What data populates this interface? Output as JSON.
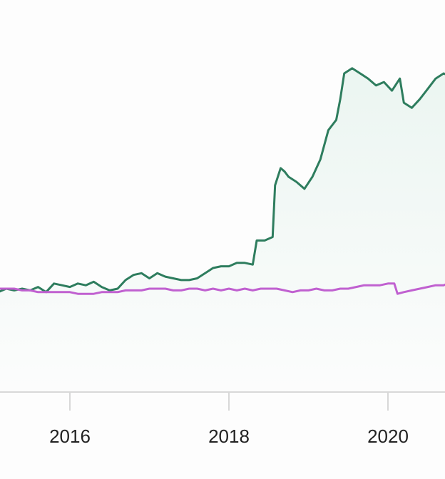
{
  "chart_data": {
    "type": "line",
    "title": "",
    "xlabel": "",
    "ylabel": "",
    "xlim": [
      2015.1,
      2020.75
    ],
    "ylim": [
      -0.6,
      1.7
    ],
    "grid": false,
    "legend": "none",
    "x_ticks": [
      {
        "value": 2016,
        "label": "2016"
      },
      {
        "value": 2018,
        "label": "2018"
      },
      {
        "value": 2020,
        "label": "2020"
      }
    ],
    "colors": {
      "series_a": "#2e7d5e",
      "series_a_fill": "#e8f4ef",
      "series_b": "#c060d0",
      "axis": "#d8d8d8",
      "tick_label": "#222222"
    },
    "series": [
      {
        "values": [
          [
            2015.1,
            -0.02
          ],
          [
            2015.2,
            0.0
          ],
          [
            2015.3,
            -0.01
          ],
          [
            2015.4,
            0.0
          ],
          [
            2015.5,
            -0.01
          ],
          [
            2015.6,
            0.01
          ],
          [
            2015.7,
            -0.02
          ],
          [
            2015.8,
            0.03
          ],
          [
            2015.9,
            0.02
          ],
          [
            2016.0,
            0.01
          ],
          [
            2016.1,
            0.03
          ],
          [
            2016.2,
            0.02
          ],
          [
            2016.3,
            0.04
          ],
          [
            2016.4,
            0.01
          ],
          [
            2016.5,
            -0.01
          ],
          [
            2016.6,
            0.0
          ],
          [
            2016.7,
            0.05
          ],
          [
            2016.8,
            0.08
          ],
          [
            2016.9,
            0.09
          ],
          [
            2017.0,
            0.06
          ],
          [
            2017.1,
            0.09
          ],
          [
            2017.2,
            0.07
          ],
          [
            2017.3,
            0.06
          ],
          [
            2017.4,
            0.05
          ],
          [
            2017.5,
            0.05
          ],
          [
            2017.6,
            0.06
          ],
          [
            2017.7,
            0.09
          ],
          [
            2017.8,
            0.12
          ],
          [
            2017.9,
            0.13
          ],
          [
            2018.0,
            0.13
          ],
          [
            2018.1,
            0.15
          ],
          [
            2018.2,
            0.15
          ],
          [
            2018.3,
            0.14
          ],
          [
            2018.35,
            0.28
          ],
          [
            2018.45,
            0.28
          ],
          [
            2018.55,
            0.3
          ],
          [
            2018.58,
            0.6
          ],
          [
            2018.65,
            0.7
          ],
          [
            2018.7,
            0.68
          ],
          [
            2018.75,
            0.65
          ],
          [
            2018.85,
            0.62
          ],
          [
            2018.95,
            0.58
          ],
          [
            2019.05,
            0.65
          ],
          [
            2019.15,
            0.75
          ],
          [
            2019.25,
            0.92
          ],
          [
            2019.35,
            0.98
          ],
          [
            2019.4,
            1.1
          ],
          [
            2019.45,
            1.25
          ],
          [
            2019.55,
            1.28
          ],
          [
            2019.65,
            1.25
          ],
          [
            2019.75,
            1.22
          ],
          [
            2019.85,
            1.18
          ],
          [
            2019.95,
            1.2
          ],
          [
            2020.05,
            1.15
          ],
          [
            2020.15,
            1.22
          ],
          [
            2020.2,
            1.08
          ],
          [
            2020.3,
            1.05
          ],
          [
            2020.4,
            1.1
          ],
          [
            2020.5,
            1.16
          ],
          [
            2020.6,
            1.22
          ],
          [
            2020.7,
            1.25
          ],
          [
            2020.75,
            1.24
          ]
        ]
      },
      {
        "values": [
          [
            2015.1,
            0.0
          ],
          [
            2015.2,
            0.0
          ],
          [
            2015.3,
            0.0
          ],
          [
            2015.4,
            -0.01
          ],
          [
            2015.5,
            -0.01
          ],
          [
            2015.6,
            -0.02
          ],
          [
            2015.7,
            -0.02
          ],
          [
            2015.8,
            -0.02
          ],
          [
            2015.9,
            -0.02
          ],
          [
            2016.0,
            -0.02
          ],
          [
            2016.1,
            -0.03
          ],
          [
            2016.2,
            -0.03
          ],
          [
            2016.3,
            -0.03
          ],
          [
            2016.4,
            -0.02
          ],
          [
            2016.5,
            -0.02
          ],
          [
            2016.6,
            -0.02
          ],
          [
            2016.7,
            -0.01
          ],
          [
            2016.8,
            -0.01
          ],
          [
            2016.9,
            -0.01
          ],
          [
            2017.0,
            0.0
          ],
          [
            2017.1,
            0.0
          ],
          [
            2017.2,
            0.0
          ],
          [
            2017.3,
            -0.01
          ],
          [
            2017.4,
            -0.01
          ],
          [
            2017.5,
            0.0
          ],
          [
            2017.6,
            0.0
          ],
          [
            2017.7,
            -0.01
          ],
          [
            2017.8,
            0.0
          ],
          [
            2017.9,
            -0.01
          ],
          [
            2018.0,
            0.0
          ],
          [
            2018.1,
            -0.01
          ],
          [
            2018.2,
            0.0
          ],
          [
            2018.3,
            -0.01
          ],
          [
            2018.4,
            0.0
          ],
          [
            2018.5,
            0.0
          ],
          [
            2018.6,
            0.0
          ],
          [
            2018.7,
            -0.01
          ],
          [
            2018.8,
            -0.02
          ],
          [
            2018.9,
            -0.01
          ],
          [
            2019.0,
            -0.01
          ],
          [
            2019.1,
            0.0
          ],
          [
            2019.2,
            -0.01
          ],
          [
            2019.3,
            -0.01
          ],
          [
            2019.4,
            0.0
          ],
          [
            2019.5,
            0.0
          ],
          [
            2019.6,
            0.01
          ],
          [
            2019.7,
            0.02
          ],
          [
            2019.8,
            0.02
          ],
          [
            2019.9,
            0.02
          ],
          [
            2020.0,
            0.03
          ],
          [
            2020.08,
            0.03
          ],
          [
            2020.12,
            -0.03
          ],
          [
            2020.2,
            -0.02
          ],
          [
            2020.3,
            -0.01
          ],
          [
            2020.4,
            0.0
          ],
          [
            2020.5,
            0.01
          ],
          [
            2020.6,
            0.02
          ],
          [
            2020.7,
            0.02
          ],
          [
            2020.75,
            0.03
          ]
        ]
      }
    ]
  }
}
